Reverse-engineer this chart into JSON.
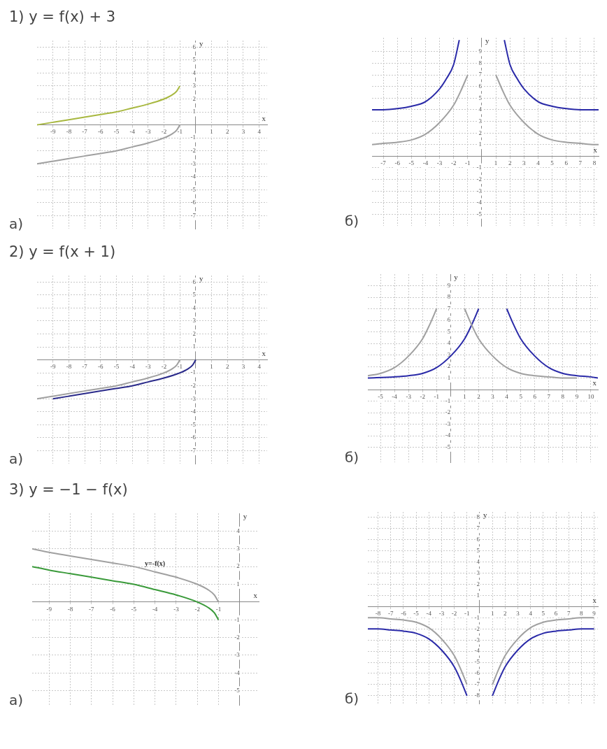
{
  "chart_data": [
    {
      "type": "line",
      "title": "1) y = f(x) + 3",
      "xlabel": "x",
      "ylabel": "y",
      "annotations": [
        "а)"
      ],
      "xlim": [
        -10,
        4.5
      ],
      "ylim": [
        -8,
        6.5
      ],
      "xticks": [
        -9,
        -8,
        -7,
        -6,
        -5,
        -4,
        -3,
        -2,
        -1,
        1,
        2,
        3,
        4
      ],
      "yticks": [
        -7,
        -6,
        -5,
        -4,
        -3,
        -2,
        -1,
        1,
        2,
        3,
        4,
        5,
        6
      ],
      "grid": true,
      "series": [
        {
          "color": "#a0a0a0",
          "x": [
            -10,
            -9,
            -8,
            -7,
            -6,
            -5,
            -4,
            -3,
            -2,
            -1.5,
            -1.2,
            -1
          ],
          "values": [
            -3,
            -2.8,
            -2.6,
            -2.4,
            -2.2,
            -2,
            -1.7,
            -1.4,
            -1,
            -0.7,
            -0.4,
            0
          ]
        },
        {
          "color": "#a8b840",
          "x": [
            -10,
            -9,
            -8,
            -7,
            -6,
            -5,
            -4,
            -3,
            -2,
            -1.5,
            -1.2,
            -1
          ],
          "values": [
            0,
            0.2,
            0.4,
            0.6,
            0.8,
            1,
            1.3,
            1.6,
            2,
            2.3,
            2.6,
            3
          ]
        }
      ]
    },
    {
      "type": "line",
      "xlabel": "x",
      "ylabel": "y",
      "annotations": [
        "б)"
      ],
      "xlim": [
        -7.8,
        8.3
      ],
      "ylim": [
        -6,
        10.2
      ],
      "xticks": [
        -7,
        -6,
        -5,
        -4,
        -3,
        -2,
        -1,
        1,
        2,
        3,
        4,
        5,
        6,
        7,
        8
      ],
      "yticks": [
        -5,
        -4,
        -3,
        -2,
        -1,
        1,
        2,
        3,
        4,
        5,
        6,
        7,
        8,
        9
      ],
      "grid": true,
      "series": [
        {
          "color": "#a0a0a0",
          "x": [
            -7.8,
            -7,
            -6,
            -5,
            -4,
            -3,
            -2,
            -1.5,
            -1
          ],
          "values": [
            1,
            1.1,
            1.2,
            1.4,
            1.9,
            2.9,
            4.4,
            5.6,
            7
          ]
        },
        {
          "color": "#a0a0a0",
          "x": [
            1,
            1.5,
            2,
            3,
            4,
            5,
            6,
            7,
            8,
            8.3
          ],
          "values": [
            7,
            5.6,
            4.4,
            2.9,
            1.9,
            1.4,
            1.2,
            1.1,
            1,
            1
          ]
        },
        {
          "color": "#2a2aa8",
          "x": [
            -7.8,
            -7,
            -6,
            -5,
            -4,
            -3,
            -2.5,
            -2,
            -1.6
          ],
          "values": [
            4,
            4,
            4.1,
            4.3,
            4.7,
            5.8,
            6.7,
            7.9,
            10
          ]
        },
        {
          "color": "#2a2aa8",
          "x": [
            1.6,
            2,
            2.5,
            3,
            4,
            5,
            6,
            7,
            8,
            8.3
          ],
          "values": [
            10,
            7.9,
            6.7,
            5.8,
            4.7,
            4.3,
            4.1,
            4,
            4,
            4
          ]
        }
      ]
    },
    {
      "type": "line",
      "title": "2) y = f(x + 1)",
      "xlabel": "x",
      "ylabel": "y",
      "annotations": [
        "а)"
      ],
      "xlim": [
        -10,
        4.5
      ],
      "ylim": [
        -8,
        6.5
      ],
      "xticks": [
        -9,
        -8,
        -7,
        -6,
        -5,
        -4,
        -3,
        -2,
        -1,
        1,
        2,
        3,
        4
      ],
      "yticks": [
        -7,
        -6,
        -5,
        -4,
        -3,
        -2,
        -1,
        1,
        2,
        3,
        4,
        5,
        6
      ],
      "grid": true,
      "series": [
        {
          "color": "#a0a0a0",
          "x": [
            -10,
            -9,
            -8,
            -7,
            -6,
            -5,
            -4,
            -3,
            -2,
            -1.5,
            -1.2,
            -1
          ],
          "values": [
            -3,
            -2.8,
            -2.6,
            -2.4,
            -2.2,
            -2,
            -1.7,
            -1.4,
            -1,
            -0.7,
            -0.4,
            0
          ]
        },
        {
          "color": "#2a2a8a",
          "x": [
            -9,
            -8,
            -7,
            -6,
            -5,
            -4,
            -3,
            -2,
            -1,
            -0.5,
            -0.2,
            0
          ],
          "values": [
            -3,
            -2.8,
            -2.6,
            -2.4,
            -2.2,
            -2,
            -1.7,
            -1.4,
            -1,
            -0.7,
            -0.4,
            0
          ]
        }
      ]
    },
    {
      "type": "line",
      "xlabel": "x",
      "ylabel": "y",
      "annotations": [
        "б)"
      ],
      "xlim": [
        -5.9,
        10.5
      ],
      "ylim": [
        -6.3,
        10
      ],
      "xticks": [
        -5,
        -4,
        -3,
        -2,
        -1,
        1,
        2,
        3,
        4,
        5,
        6,
        7,
        8,
        9,
        10
      ],
      "yticks": [
        -5,
        -4,
        -3,
        -2,
        -1,
        1,
        2,
        3,
        4,
        5,
        6,
        7,
        8,
        9
      ],
      "grid": true,
      "series": [
        {
          "color": "#a0a0a0",
          "x": [
            -5.9,
            -5,
            -4,
            -3,
            -2,
            -1.5,
            -1
          ],
          "values": [
            1.2,
            1.4,
            1.9,
            2.9,
            4.4,
            5.6,
            7
          ]
        },
        {
          "color": "#a0a0a0",
          "x": [
            1,
            1.5,
            2,
            3,
            4,
            5,
            6,
            7,
            8,
            9
          ],
          "values": [
            7,
            5.6,
            4.4,
            2.9,
            1.9,
            1.4,
            1.2,
            1.1,
            1,
            1
          ]
        },
        {
          "color": "#2a2aa8",
          "x": [
            -5.9,
            -4,
            -3,
            -2,
            -1,
            0,
            1,
            1.5,
            2
          ],
          "values": [
            1,
            1.1,
            1.2,
            1.4,
            1.9,
            2.9,
            4.4,
            5.6,
            7
          ]
        },
        {
          "color": "#2a2aa8",
          "x": [
            4,
            4.5,
            5,
            6,
            7,
            8,
            9,
            10,
            10.5
          ],
          "values": [
            7,
            5.6,
            4.4,
            2.9,
            1.9,
            1.4,
            1.2,
            1.1,
            1
          ]
        }
      ]
    },
    {
      "type": "line",
      "title": "3) y = −1 − f(x)",
      "xlabel": "x",
      "ylabel": "y",
      "annotations": [
        "а)",
        {
          "text": "y=-f(x)",
          "x": -4,
          "y": 1.7
        }
      ],
      "xlim": [
        -9.8,
        0.9
      ],
      "ylim": [
        -5.8,
        5
      ],
      "xticks": [
        -9,
        -8,
        -7,
        -6,
        -5,
        -4,
        -3,
        -2,
        -1
      ],
      "yticks": [
        -5,
        -4,
        -3,
        -2,
        -1,
        1,
        2,
        3,
        4
      ],
      "grid": true,
      "series": [
        {
          "color": "#a0a0a0",
          "x": [
            -9.8,
            -9,
            -8,
            -7,
            -6,
            -5,
            -4,
            -3,
            -2,
            -1.5,
            -1.2,
            -1
          ],
          "values": [
            3,
            2.8,
            2.6,
            2.4,
            2.2,
            2,
            1.7,
            1.4,
            1,
            0.7,
            0.4,
            0
          ]
        },
        {
          "color": "#3a9a3a",
          "x": [
            -9.8,
            -9,
            -8,
            -7,
            -6,
            -5,
            -4,
            -3,
            -2,
            -1.5,
            -1.2,
            -1
          ],
          "values": [
            2,
            1.8,
            1.6,
            1.4,
            1.2,
            1,
            0.7,
            0.4,
            0,
            -0.3,
            -0.6,
            -1
          ]
        }
      ]
    },
    {
      "type": "line",
      "xlabel": "x",
      "ylabel": "y",
      "annotations": [
        "б)"
      ],
      "xlim": [
        -8.8,
        9.3
      ],
      "ylim": [
        -8.7,
        8.5
      ],
      "xticks": [
        -8,
        -7,
        -6,
        -5,
        -4,
        -3,
        -2,
        -1,
        1,
        2,
        3,
        4,
        5,
        6,
        7,
        8,
        9
      ],
      "yticks": [
        -8,
        -7,
        -6,
        -5,
        -4,
        -3,
        -2,
        -1,
        1,
        2,
        3,
        4,
        5,
        6,
        7,
        8
      ],
      "grid": true,
      "series": [
        {
          "color": "#a0a0a0",
          "x": [
            -8.8,
            -8,
            -7,
            -6,
            -5,
            -4,
            -3,
            -2,
            -1.5,
            -1
          ],
          "values": [
            -1,
            -1,
            -1.1,
            -1.2,
            -1.4,
            -1.9,
            -2.9,
            -4.4,
            -5.6,
            -7
          ]
        },
        {
          "color": "#a0a0a0",
          "x": [
            1,
            1.5,
            2,
            3,
            4,
            5,
            6,
            7,
            8,
            9
          ],
          "values": [
            -7,
            -5.6,
            -4.4,
            -2.9,
            -1.9,
            -1.4,
            -1.2,
            -1.1,
            -1,
            -1
          ]
        },
        {
          "color": "#2a2aa8",
          "x": [
            -8.8,
            -8,
            -7,
            -6,
            -5,
            -4,
            -3,
            -2,
            -1.5,
            -1
          ],
          "values": [
            -2,
            -2,
            -2.1,
            -2.2,
            -2.4,
            -2.9,
            -3.9,
            -5.4,
            -6.6,
            -8
          ]
        },
        {
          "color": "#2a2aa8",
          "x": [
            1,
            1.5,
            2,
            3,
            4,
            5,
            6,
            7,
            8,
            9
          ],
          "values": [
            -8,
            -6.6,
            -5.4,
            -3.9,
            -2.9,
            -2.4,
            -2.2,
            -2.1,
            -2,
            -2
          ]
        }
      ]
    }
  ]
}
